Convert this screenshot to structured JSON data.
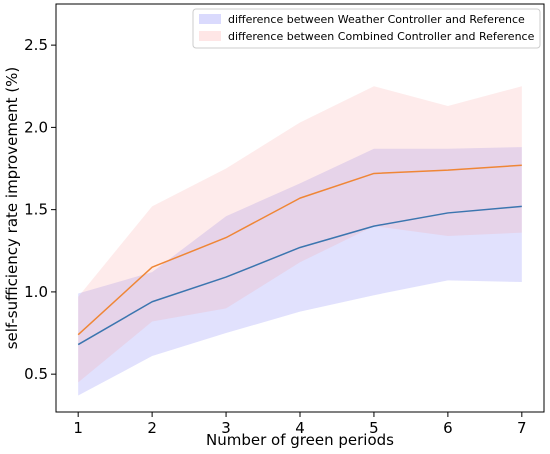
{
  "chart_data": {
    "type": "line",
    "xlabel": "Number of green periods",
    "ylabel": "self-sufficiency rate improvement (%)",
    "x": [
      1,
      2,
      3,
      4,
      5,
      6,
      7
    ],
    "xlim": [
      0.7,
      7.3
    ],
    "ylim": [
      0.27,
      2.75
    ],
    "xticks": [
      1,
      2,
      3,
      4,
      5,
      6,
      7
    ],
    "yticks": [
      0.5,
      1.0,
      1.5,
      2.0,
      2.5
    ],
    "ytick_labels": [
      "0.5",
      "1.0",
      "1.5",
      "2.0",
      "2.5"
    ],
    "grid": false,
    "legend_position": "top-right",
    "series": [
      {
        "name": "difference between Weather Controller and Reference",
        "line_color": "#3b75af",
        "band_color": "#6a6af7",
        "mean": [
          0.68,
          0.94,
          1.09,
          1.27,
          1.4,
          1.48,
          1.52
        ],
        "lower": [
          0.37,
          0.61,
          0.75,
          0.88,
          0.98,
          1.07,
          1.06
        ],
        "upper": [
          0.99,
          1.12,
          1.46,
          1.66,
          1.87,
          1.87,
          1.88
        ]
      },
      {
        "name": "difference between Combined Controller and Reference",
        "line_color": "#ef8636",
        "band_color": "#fa9d9d",
        "mean": [
          0.74,
          1.15,
          1.33,
          1.57,
          1.72,
          1.74,
          1.77
        ],
        "lower": [
          0.45,
          0.82,
          0.9,
          1.18,
          1.4,
          1.34,
          1.36
        ],
        "upper": [
          0.97,
          1.52,
          1.75,
          2.03,
          2.25,
          2.13,
          2.25
        ]
      }
    ]
  }
}
